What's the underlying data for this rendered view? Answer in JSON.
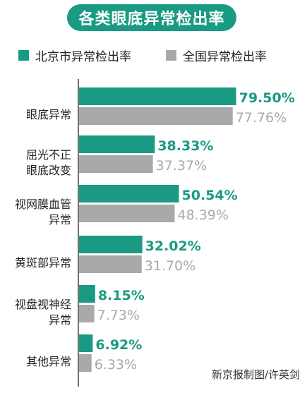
{
  "title": "各类眼底异常检出率",
  "credit": "新京报制图/许英剑",
  "colors": {
    "beijing": "#1a9a82",
    "national": "#a9a9a9",
    "axis": "#444444"
  },
  "chart_data": {
    "type": "bar",
    "orientation": "horizontal",
    "categories": [
      [
        "眼底异常"
      ],
      [
        "屈光不正",
        "眼底改变"
      ],
      [
        "视网膜血管",
        "异常"
      ],
      [
        "黄斑部异常"
      ],
      [
        "视盘视神经",
        "异常"
      ],
      [
        "其他异常"
      ]
    ],
    "series": [
      {
        "name": "北京市异常检出率",
        "values": [
          79.5,
          38.33,
          50.54,
          32.02,
          8.15,
          6.92
        ],
        "labels": [
          "79.50%",
          "38.33%",
          "50.54%",
          "32.02%",
          "8.15%",
          "6.92%"
        ]
      },
      {
        "name": "全国异常检出率",
        "values": [
          77.76,
          37.37,
          48.39,
          31.7,
          7.73,
          6.33
        ],
        "labels": [
          "77.76%",
          "37.37%",
          "48.39%",
          "31.70%",
          "7.73%",
          "6.33%"
        ]
      }
    ],
    "xlim": [
      0,
      100
    ],
    "legend_position": "top",
    "grid": false
  }
}
